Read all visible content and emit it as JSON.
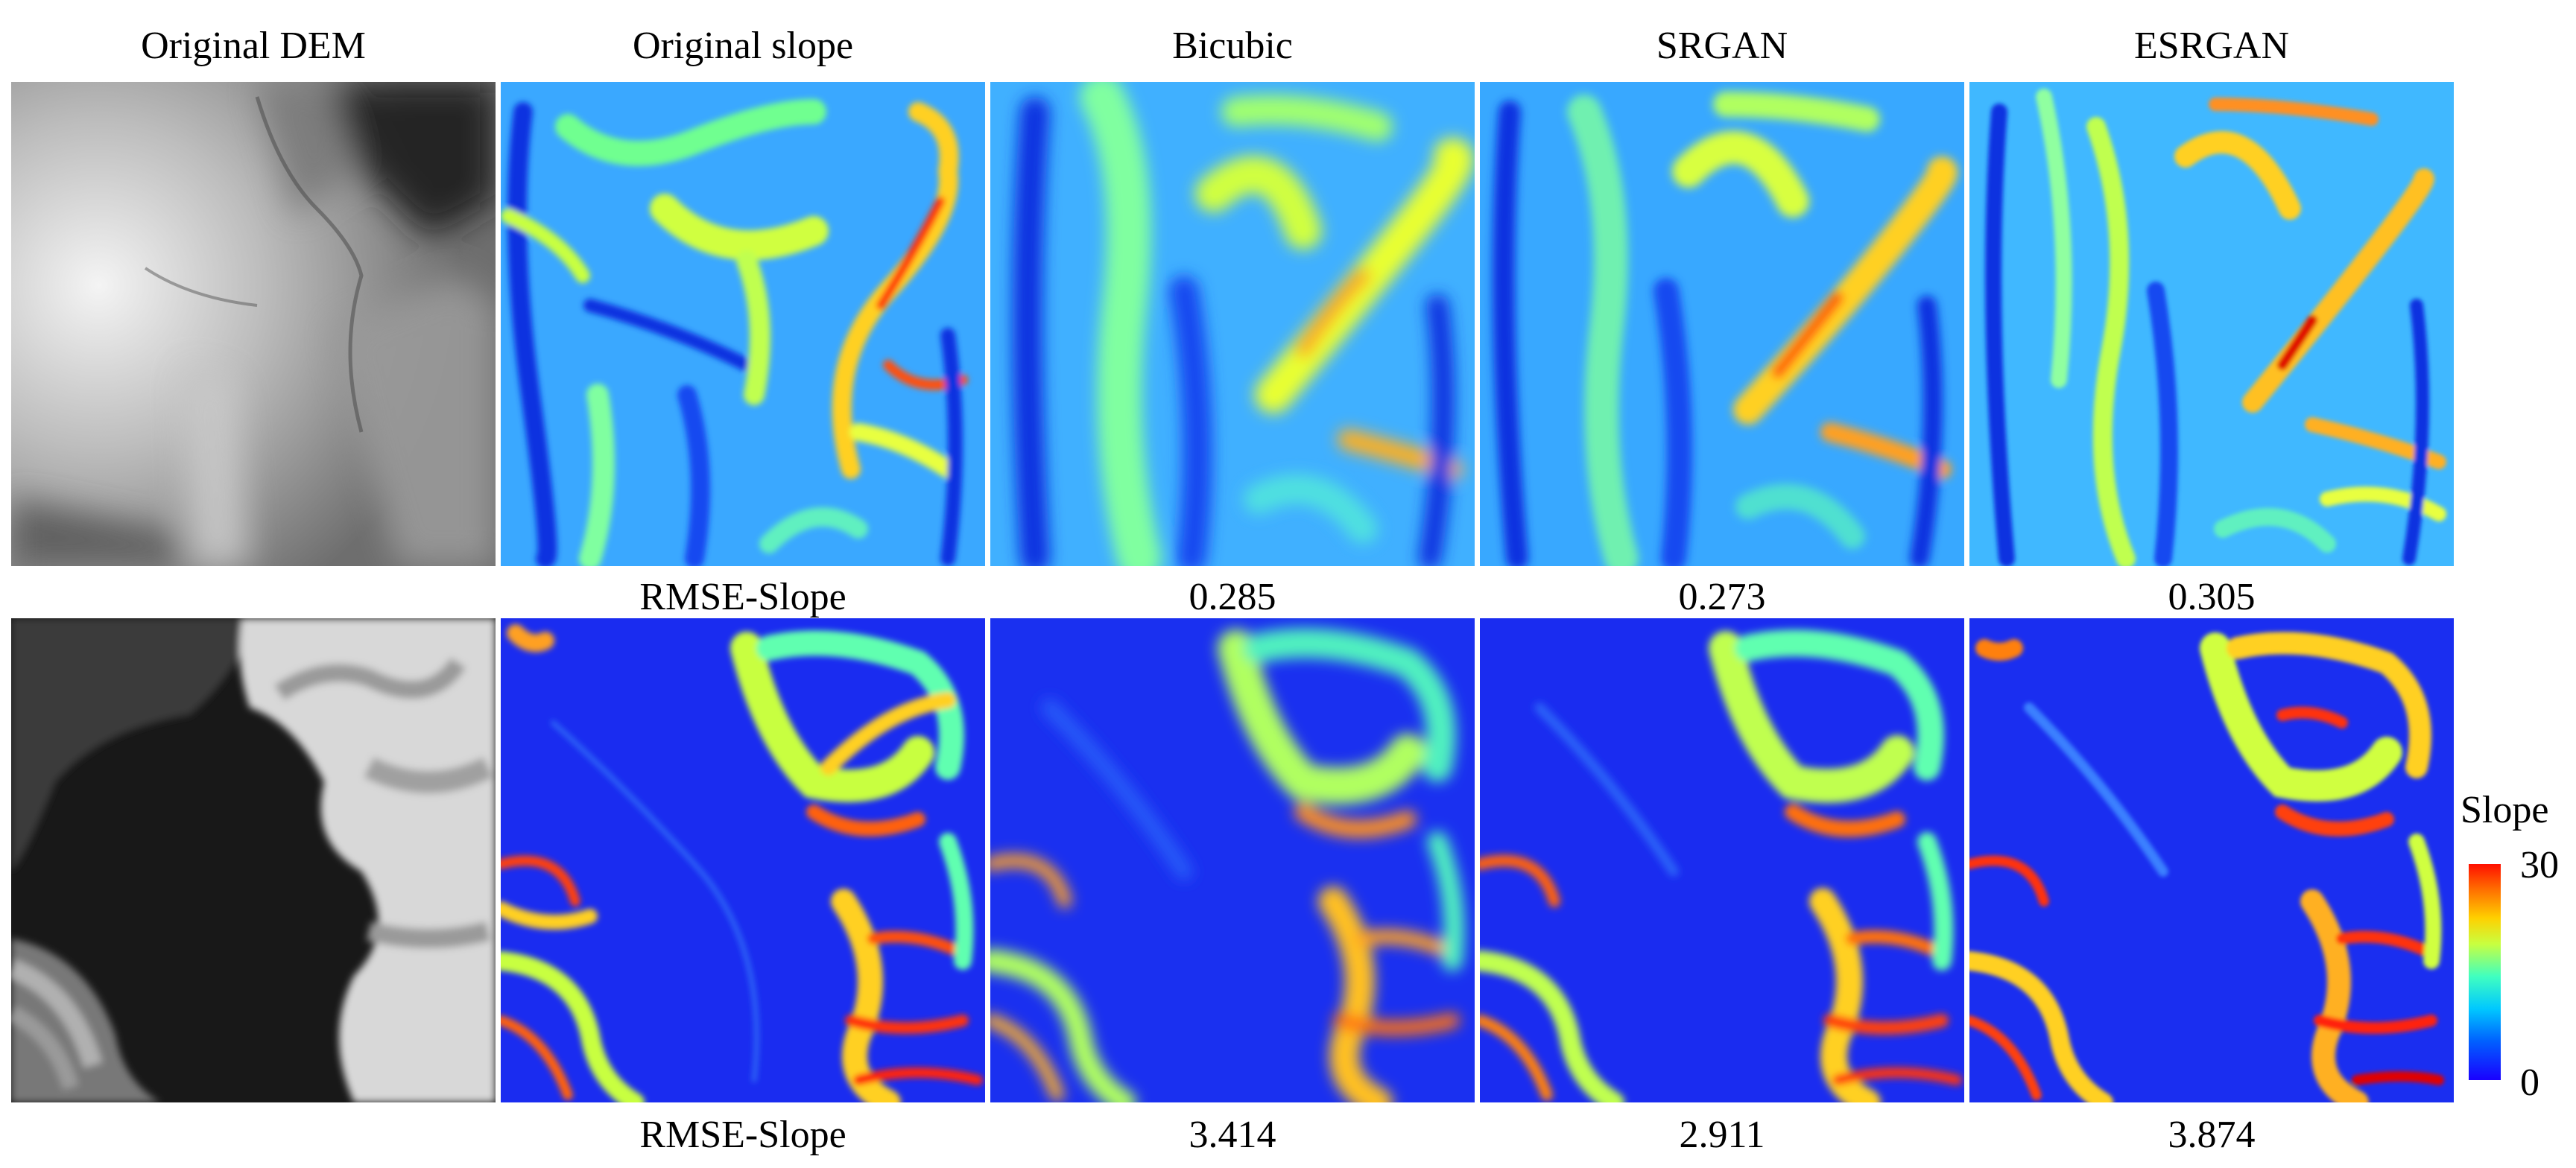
{
  "headers": [
    "Original DEM",
    "Original slope",
    "Bicubic",
    "SRGAN",
    "ESRGAN"
  ],
  "rows": [
    {
      "metric_label": "RMSE-Slope",
      "values": [
        "0.285",
        "0.273",
        "0.305"
      ]
    },
    {
      "metric_label": "RMSE-Slope",
      "values": [
        "3.414",
        "2.911",
        "3.874"
      ]
    }
  ],
  "colorbar": {
    "title": "Slope",
    "max_label": "30",
    "min_label": "0",
    "max": 30,
    "min": 0,
    "colormap": "jet"
  }
}
